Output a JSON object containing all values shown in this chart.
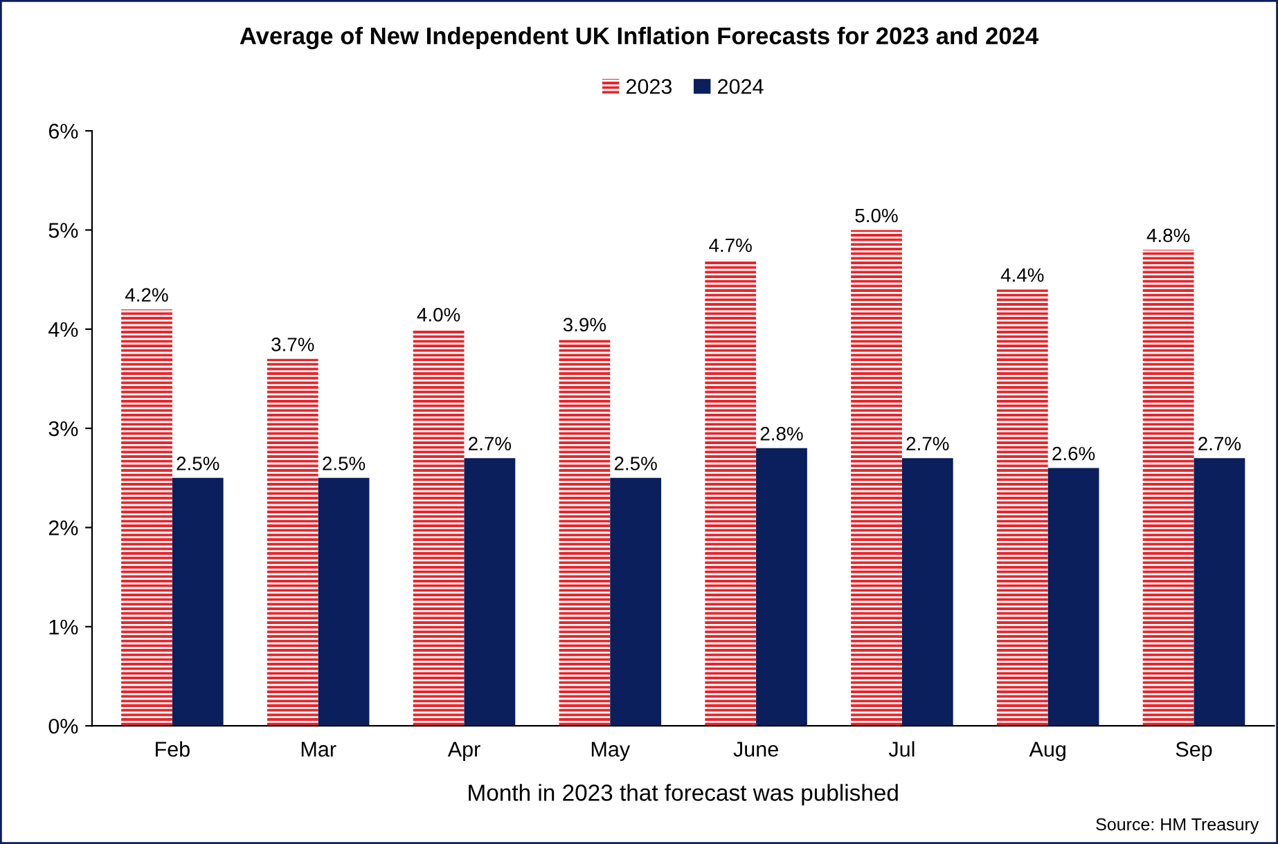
{
  "chart_data": {
    "type": "bar",
    "title": "Average of New Independent UK Inflation Forecasts for 2023 and 2024",
    "xlabel": "Month in 2023 that forecast was published",
    "categories": [
      "Feb",
      "Mar",
      "Apr",
      "May",
      "June",
      "Jul",
      "Aug",
      "Sep"
    ],
    "series": [
      {
        "name": "2023",
        "color": "#e8262c",
        "values": [
          4.2,
          3.7,
          4.0,
          3.9,
          4.7,
          5.0,
          4.4,
          4.8
        ],
        "value_labels": [
          "4.2%",
          "3.7%",
          "4.0%",
          "3.9%",
          "4.7%",
          "5.0%",
          "4.4%",
          "4.8%"
        ]
      },
      {
        "name": "2024",
        "color": "#0a1f5c",
        "values": [
          2.5,
          2.5,
          2.7,
          2.5,
          2.8,
          2.7,
          2.6,
          2.7
        ],
        "value_labels": [
          "2.5%",
          "2.5%",
          "2.7%",
          "2.5%",
          "2.8%",
          "2.7%",
          "2.6%",
          "2.7%"
        ]
      }
    ],
    "ylim": [
      0,
      6
    ],
    "yticks": [
      {
        "value": 0,
        "label": "0%"
      },
      {
        "value": 1,
        "label": "1%"
      },
      {
        "value": 2,
        "label": "2%"
      },
      {
        "value": 3,
        "label": "3%"
      },
      {
        "value": 4,
        "label": "4%"
      },
      {
        "value": 5,
        "label": "5%"
      },
      {
        "value": 6,
        "label": "6%"
      }
    ],
    "grid": false,
    "legend": "top",
    "annotations": [
      "Source: HM Treasury"
    ]
  }
}
